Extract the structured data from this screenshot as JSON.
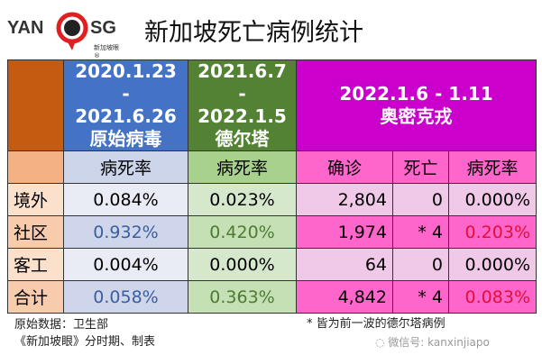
{
  "logo": {
    "left": "YAN",
    "right": "SG",
    "sub": "新加坡眼®"
  },
  "title": "新加坡死亡病例统计",
  "colors": {
    "orange": "#c55a11",
    "blue": "#4472c4",
    "green": "#548235",
    "magenta": "#cc00cc"
  },
  "header": {
    "p1": [
      "2020.1.23",
      "- 2021.6.26",
      "原始病毒"
    ],
    "p2": [
      "2021.6.7",
      "- 2022.1.5",
      "德尔塔"
    ],
    "p3": [
      "2022.1.6 - 1.11",
      "奥密克戎"
    ]
  },
  "subheader": [
    "病死率",
    "病死率",
    "确诊",
    "死亡",
    "病死率"
  ],
  "rows": [
    {
      "label": "境外",
      "v": [
        "0.084%",
        "0.023%",
        "2,804",
        "0",
        "0.000%"
      ]
    },
    {
      "label": "社区",
      "v": [
        "0.932%",
        "0.420%",
        "1,974",
        "* 4",
        "0.203%"
      ]
    },
    {
      "label": "客工",
      "v": [
        "0.004%",
        "0.000%",
        "64",
        "0",
        "0.000%"
      ]
    },
    {
      "label": "合计",
      "v": [
        "0.058%",
        "0.363%",
        "4,842",
        "* 4",
        "0.083%"
      ]
    }
  ],
  "footer": {
    "source": "原始数据：卫生部",
    "credit": "《新加坡眼》分时期、制表",
    "note": "* 皆为前一波的德尔塔病例",
    "wechat": "微信号: kanxinjiapo"
  }
}
